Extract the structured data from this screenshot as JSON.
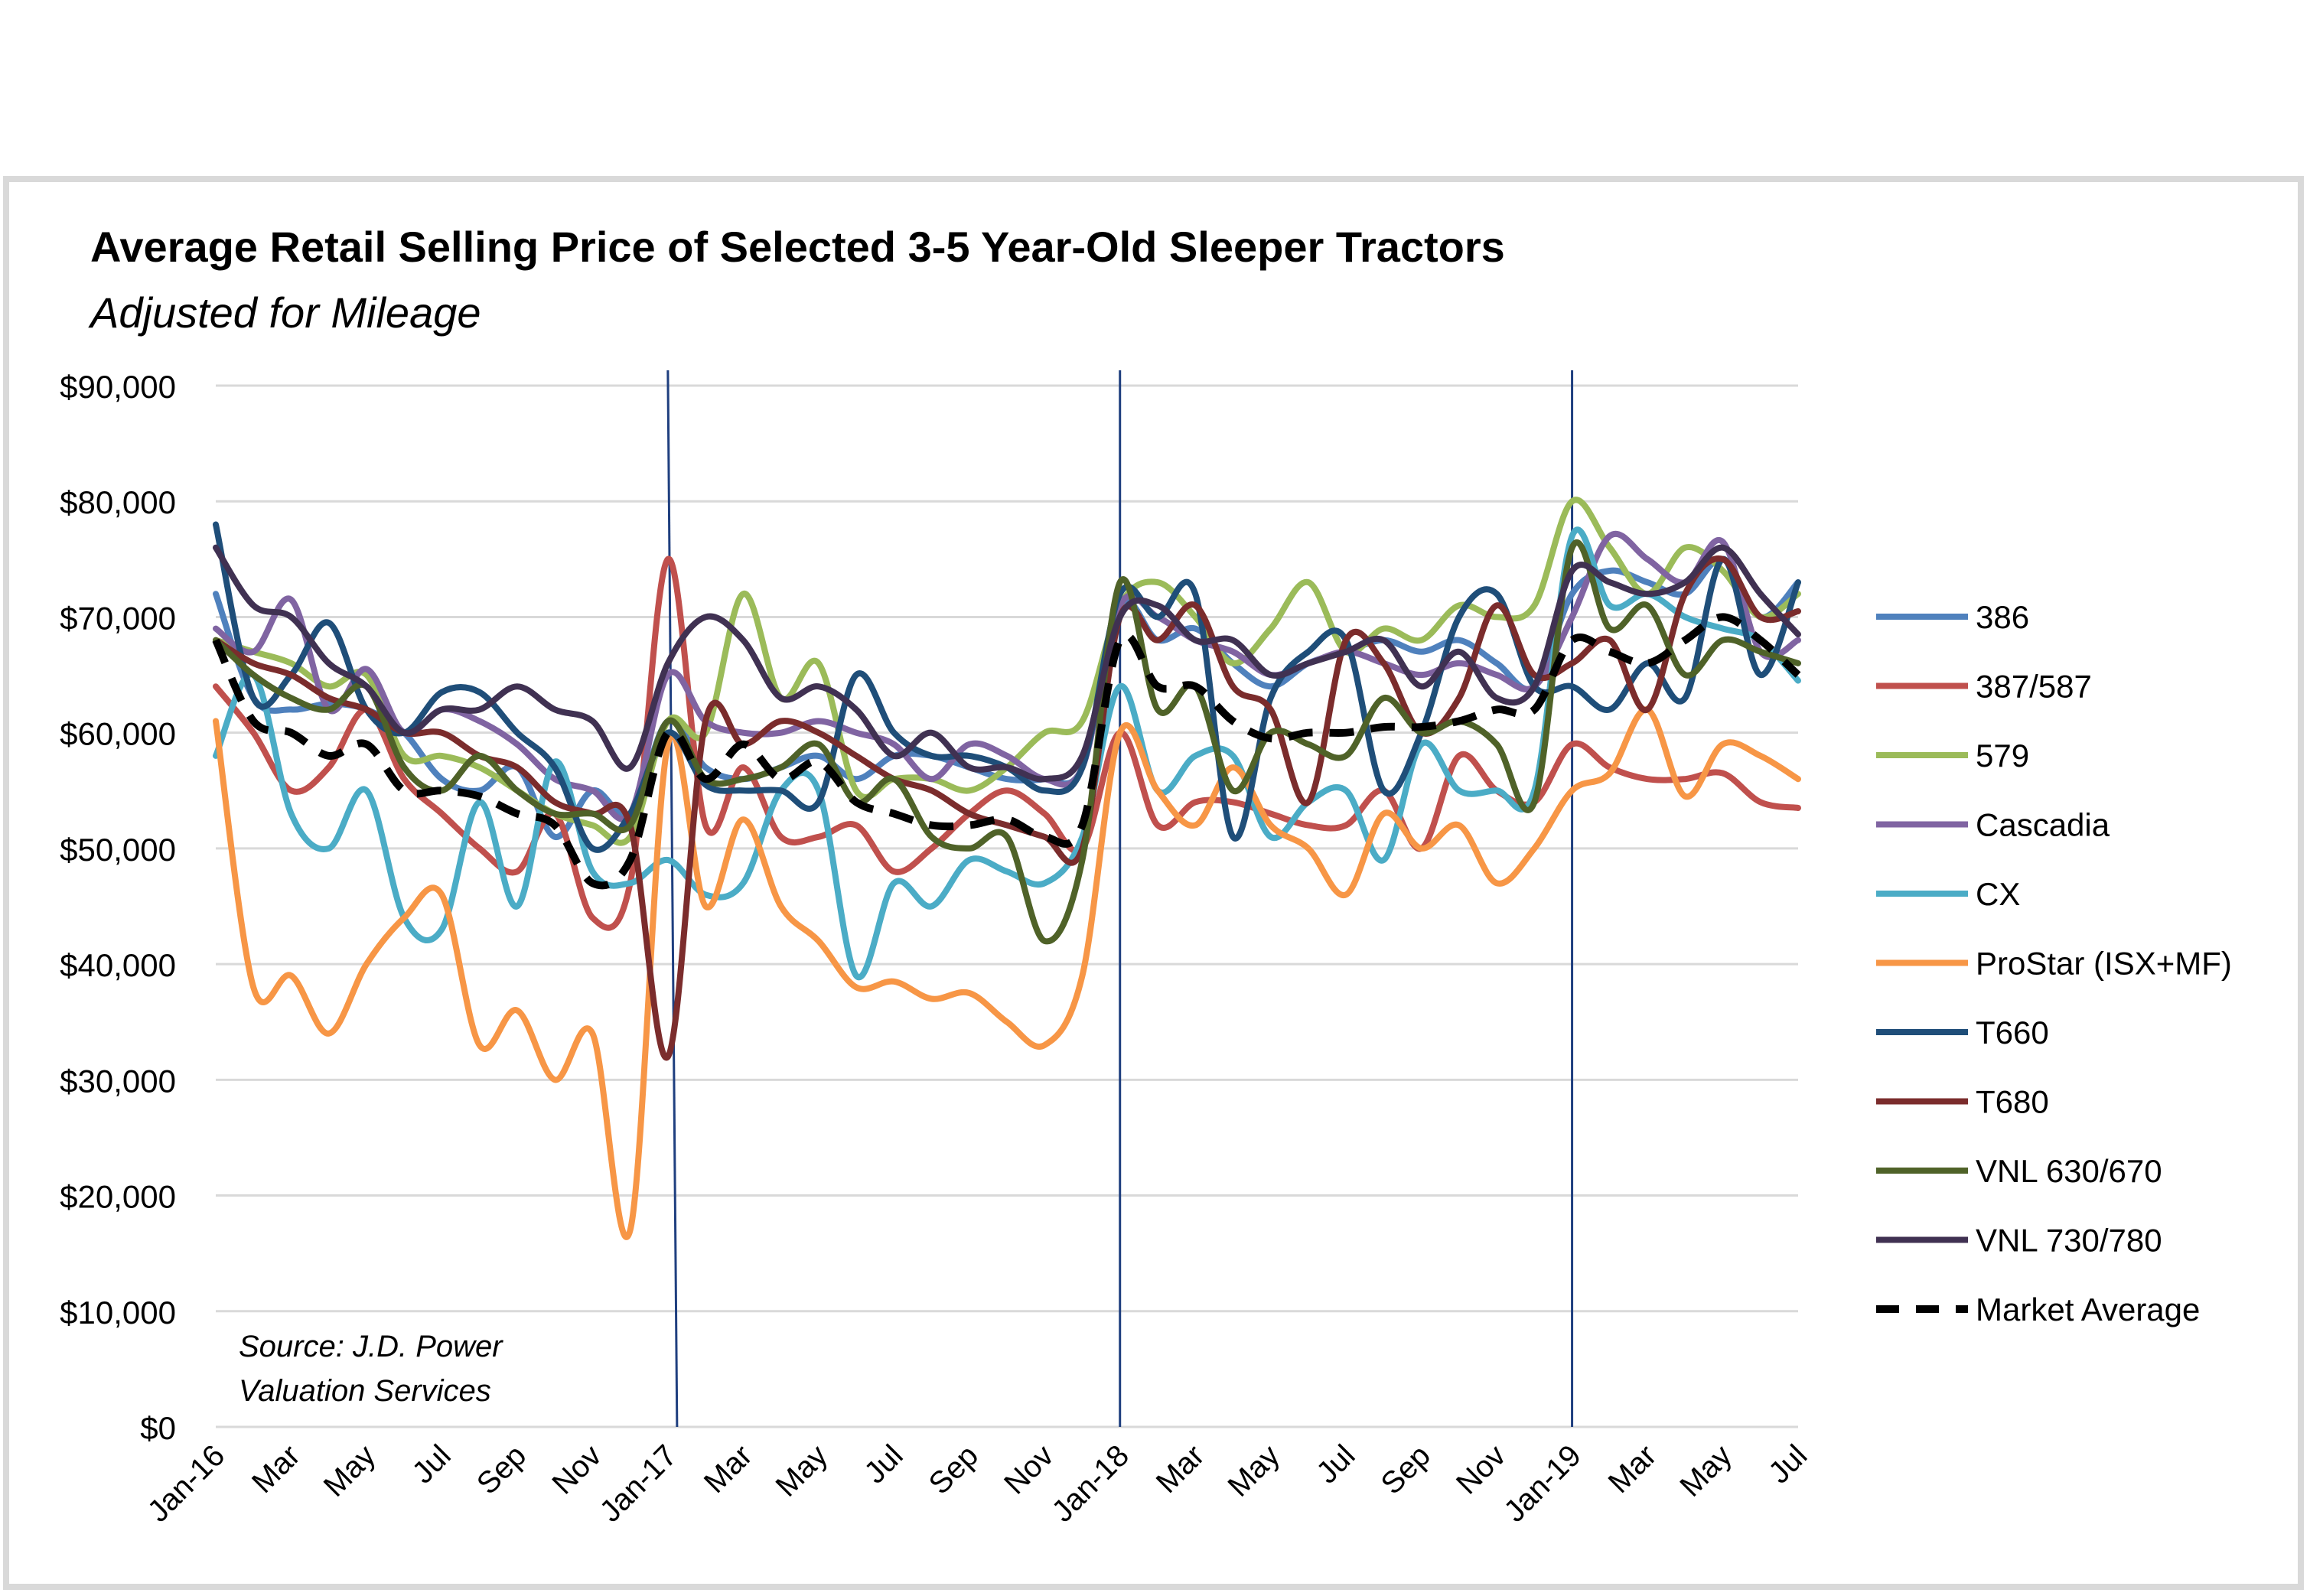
{
  "chart_data": {
    "type": "line",
    "title": "Average Retail Selling Price of Selected 3-5 Year-Old Sleeper Tractors",
    "subtitle": "Adjusted for Mileage",
    "source": "Source: J.D. Power Valuation Services",
    "source_lines": [
      "Source: J.D. Power",
      "Valuation Services"
    ],
    "ylim": [
      0,
      90000
    ],
    "y_ticks": [
      0,
      10000,
      20000,
      30000,
      40000,
      50000,
      60000,
      70000,
      80000,
      90000
    ],
    "y_tick_labels": [
      "$0",
      "$10,000",
      "$20,000",
      "$30,000",
      "$40,000",
      "$50,000",
      "$60,000",
      "$70,000",
      "$80,000",
      "$90,000"
    ],
    "x_tick_labels": [
      "Jan-16",
      "Mar",
      "May",
      "Jul",
      "Sep",
      "Nov",
      "Jan-17",
      "Mar",
      "May",
      "Jul",
      "Sep",
      "Nov",
      "Jan-18",
      "Mar",
      "May",
      "Jul",
      "Sep",
      "Nov",
      "Jan-19",
      "Mar",
      "May",
      "Jul"
    ],
    "x_months": [
      "2016-01",
      "2016-02",
      "2016-03",
      "2016-04",
      "2016-05",
      "2016-06",
      "2016-07",
      "2016-08",
      "2016-09",
      "2016-10",
      "2016-11",
      "2016-12",
      "2017-01",
      "2017-02",
      "2017-03",
      "2017-04",
      "2017-05",
      "2017-06",
      "2017-07",
      "2017-08",
      "2017-09",
      "2017-10",
      "2017-11",
      "2017-12",
      "2018-01",
      "2018-02",
      "2018-03",
      "2018-04",
      "2018-05",
      "2018-06",
      "2018-07",
      "2018-08",
      "2018-09",
      "2018-10",
      "2018-11",
      "2018-12",
      "2019-01",
      "2019-02",
      "2019-03",
      "2019-04",
      "2019-05",
      "2019-06",
      "2019-07"
    ],
    "grid": true,
    "legend_position": "right",
    "vertical_markers": [
      "2017-01",
      "2018-01",
      "2019-01"
    ],
    "series": [
      {
        "name": "386",
        "color": "#4f81bd",
        "values": [
          72000,
          63000,
          62000,
          62500,
          62000,
          60000,
          56000,
          55000,
          57000,
          51000,
          55000,
          53000,
          61000,
          57000,
          56000,
          57000,
          58000,
          56000,
          58000,
          58000,
          57000,
          56000,
          56000,
          57000,
          71000,
          68000,
          69000,
          66000,
          64000,
          66000,
          67000,
          68000,
          67000,
          68000,
          66000,
          64000,
          72000,
          74000,
          73000,
          72000,
          75000,
          70000,
          73000
        ]
      },
      {
        "name": "387/587",
        "color": "#c0504d",
        "values": [
          64000,
          60000,
          55000,
          57000,
          62000,
          56000,
          53000,
          50000,
          48000,
          53000,
          44000,
          47000,
          75000,
          52000,
          57000,
          51000,
          51000,
          52000,
          48000,
          50000,
          53000,
          55000,
          53000,
          50000,
          60000,
          52000,
          54000,
          54000,
          53000,
          52000,
          52000,
          55000,
          50000,
          58000,
          55000,
          54000,
          59000,
          57000,
          56000,
          56000,
          56500,
          54000,
          53500
        ]
      },
      {
        "name": "579",
        "color": "#9bbb59",
        "values": [
          68000,
          67000,
          66000,
          64000,
          65000,
          58000,
          58000,
          57000,
          55000,
          53000,
          52000,
          51000,
          61000,
          60000,
          72000,
          63000,
          66000,
          55000,
          56000,
          56000,
          55000,
          57000,
          60000,
          61000,
          71000,
          73000,
          70000,
          66000,
          69000,
          73000,
          67000,
          69000,
          68000,
          71000,
          70000,
          71000,
          80000,
          76000,
          72000,
          76000,
          74000,
          70000,
          72000
        ]
      },
      {
        "name": "Cascadia",
        "color": "#8064a2",
        "values": [
          69000,
          67000,
          71500,
          62000,
          65500,
          60000,
          62000,
          61000,
          59000,
          56000,
          55000,
          53000,
          65000,
          61000,
          60000,
          60000,
          61000,
          60000,
          59000,
          56000,
          59000,
          58000,
          56000,
          57000,
          71000,
          70000,
          68000,
          67000,
          65000,
          66000,
          67000,
          66000,
          65000,
          66000,
          65000,
          64000,
          70000,
          77000,
          75000,
          73000,
          76500,
          67000,
          68000
        ]
      },
      {
        "name": "CX",
        "color": "#4bacc6",
        "values": [
          58000,
          65000,
          53000,
          50000,
          55000,
          44000,
          43000,
          54000,
          45000,
          57500,
          48000,
          47000,
          49000,
          46000,
          47000,
          55000,
          55000,
          39000,
          47000,
          45000,
          49000,
          48000,
          47000,
          51000,
          64000,
          55000,
          58000,
          58000,
          51000,
          54000,
          55000,
          49000,
          59000,
          55000,
          55000,
          55000,
          77000,
          71000,
          72000,
          70000,
          69000,
          68000,
          64500
        ]
      },
      {
        "name": "ProStar (ISX+MF)",
        "color": "#f79646",
        "values": [
          61000,
          38000,
          39000,
          34000,
          40000,
          44000,
          46000,
          33000,
          36000,
          30000,
          34000,
          17000,
          59000,
          45000,
          52500,
          45000,
          42000,
          38000,
          38500,
          37000,
          37500,
          35000,
          33000,
          39000,
          60000,
          55000,
          52000,
          57000,
          52000,
          50000,
          46000,
          53000,
          50000,
          52000,
          47000,
          50000,
          55000,
          56500,
          62000,
          54500,
          59000,
          58000,
          56000
        ]
      },
      {
        "name": "T660",
        "color": "#1f4e79",
        "values": [
          78000,
          63000,
          65000,
          69500,
          62000,
          60000,
          63500,
          63500,
          60000,
          57000,
          50000,
          53000,
          60000,
          55500,
          55000,
          55000,
          54000,
          65000,
          60000,
          58000,
          58000,
          57000,
          55000,
          57000,
          72000,
          70000,
          72000,
          51000,
          63000,
          67000,
          68000,
          55000,
          60000,
          70000,
          72000,
          64000,
          64000,
          62000,
          66000,
          63000,
          75000,
          65000,
          73000
        ]
      },
      {
        "name": "T680",
        "color": "#7b2c2c",
        "values": [
          68000,
          66000,
          65000,
          63000,
          62000,
          60000,
          60000,
          58000,
          57000,
          54000,
          53000,
          52000,
          32000,
          61000,
          59000,
          61000,
          60000,
          58000,
          56000,
          55000,
          53000,
          52000,
          51000,
          50000,
          70000,
          68000,
          71000,
          64000,
          62000,
          54000,
          68000,
          66000,
          60000,
          63000,
          71000,
          65000,
          66000,
          68000,
          62000,
          72000,
          75000,
          70000,
          70500
        ]
      },
      {
        "name": "VNL 630/670",
        "color": "#4f6228",
        "values": [
          68000,
          65000,
          63000,
          62000,
          64000,
          57000,
          55000,
          58000,
          55000,
          53000,
          53000,
          52000,
          61000,
          56000,
          56000,
          57000,
          59000,
          54000,
          56000,
          51000,
          50000,
          51000,
          42000,
          49000,
          73000,
          62000,
          64000,
          55000,
          60000,
          59000,
          58000,
          63000,
          60000,
          61000,
          59000,
          54000,
          76000,
          69000,
          71000,
          65000,
          68000,
          67000,
          66000
        ]
      },
      {
        "name": "VNL 730/780",
        "color": "#403152",
        "values": [
          76000,
          71000,
          70000,
          66000,
          64000,
          60000,
          62000,
          62000,
          64000,
          62000,
          61000,
          57000,
          66000,
          70000,
          68000,
          63000,
          64000,
          62000,
          58000,
          60000,
          57000,
          57000,
          56000,
          58000,
          70000,
          71000,
          68000,
          68000,
          65000,
          66000,
          67000,
          68000,
          64000,
          67000,
          63000,
          64000,
          74000,
          73000,
          72000,
          73000,
          76000,
          72000,
          68500
        ]
      },
      {
        "name": "Market Average",
        "color": "#000000",
        "dashed": true,
        "values": [
          68000,
          61000,
          60000,
          58000,
          59000,
          55000,
          55000,
          54500,
          53000,
          52000,
          47000,
          49000,
          60000,
          56000,
          59000,
          56000,
          57500,
          54000,
          53000,
          52000,
          52000,
          52500,
          51000,
          52000,
          68000,
          64000,
          64000,
          61000,
          59500,
          60000,
          60000,
          60500,
          60500,
          61000,
          62000,
          62000,
          68000,
          67000,
          66000,
          68000,
          70000,
          68000,
          65000
        ]
      }
    ]
  }
}
